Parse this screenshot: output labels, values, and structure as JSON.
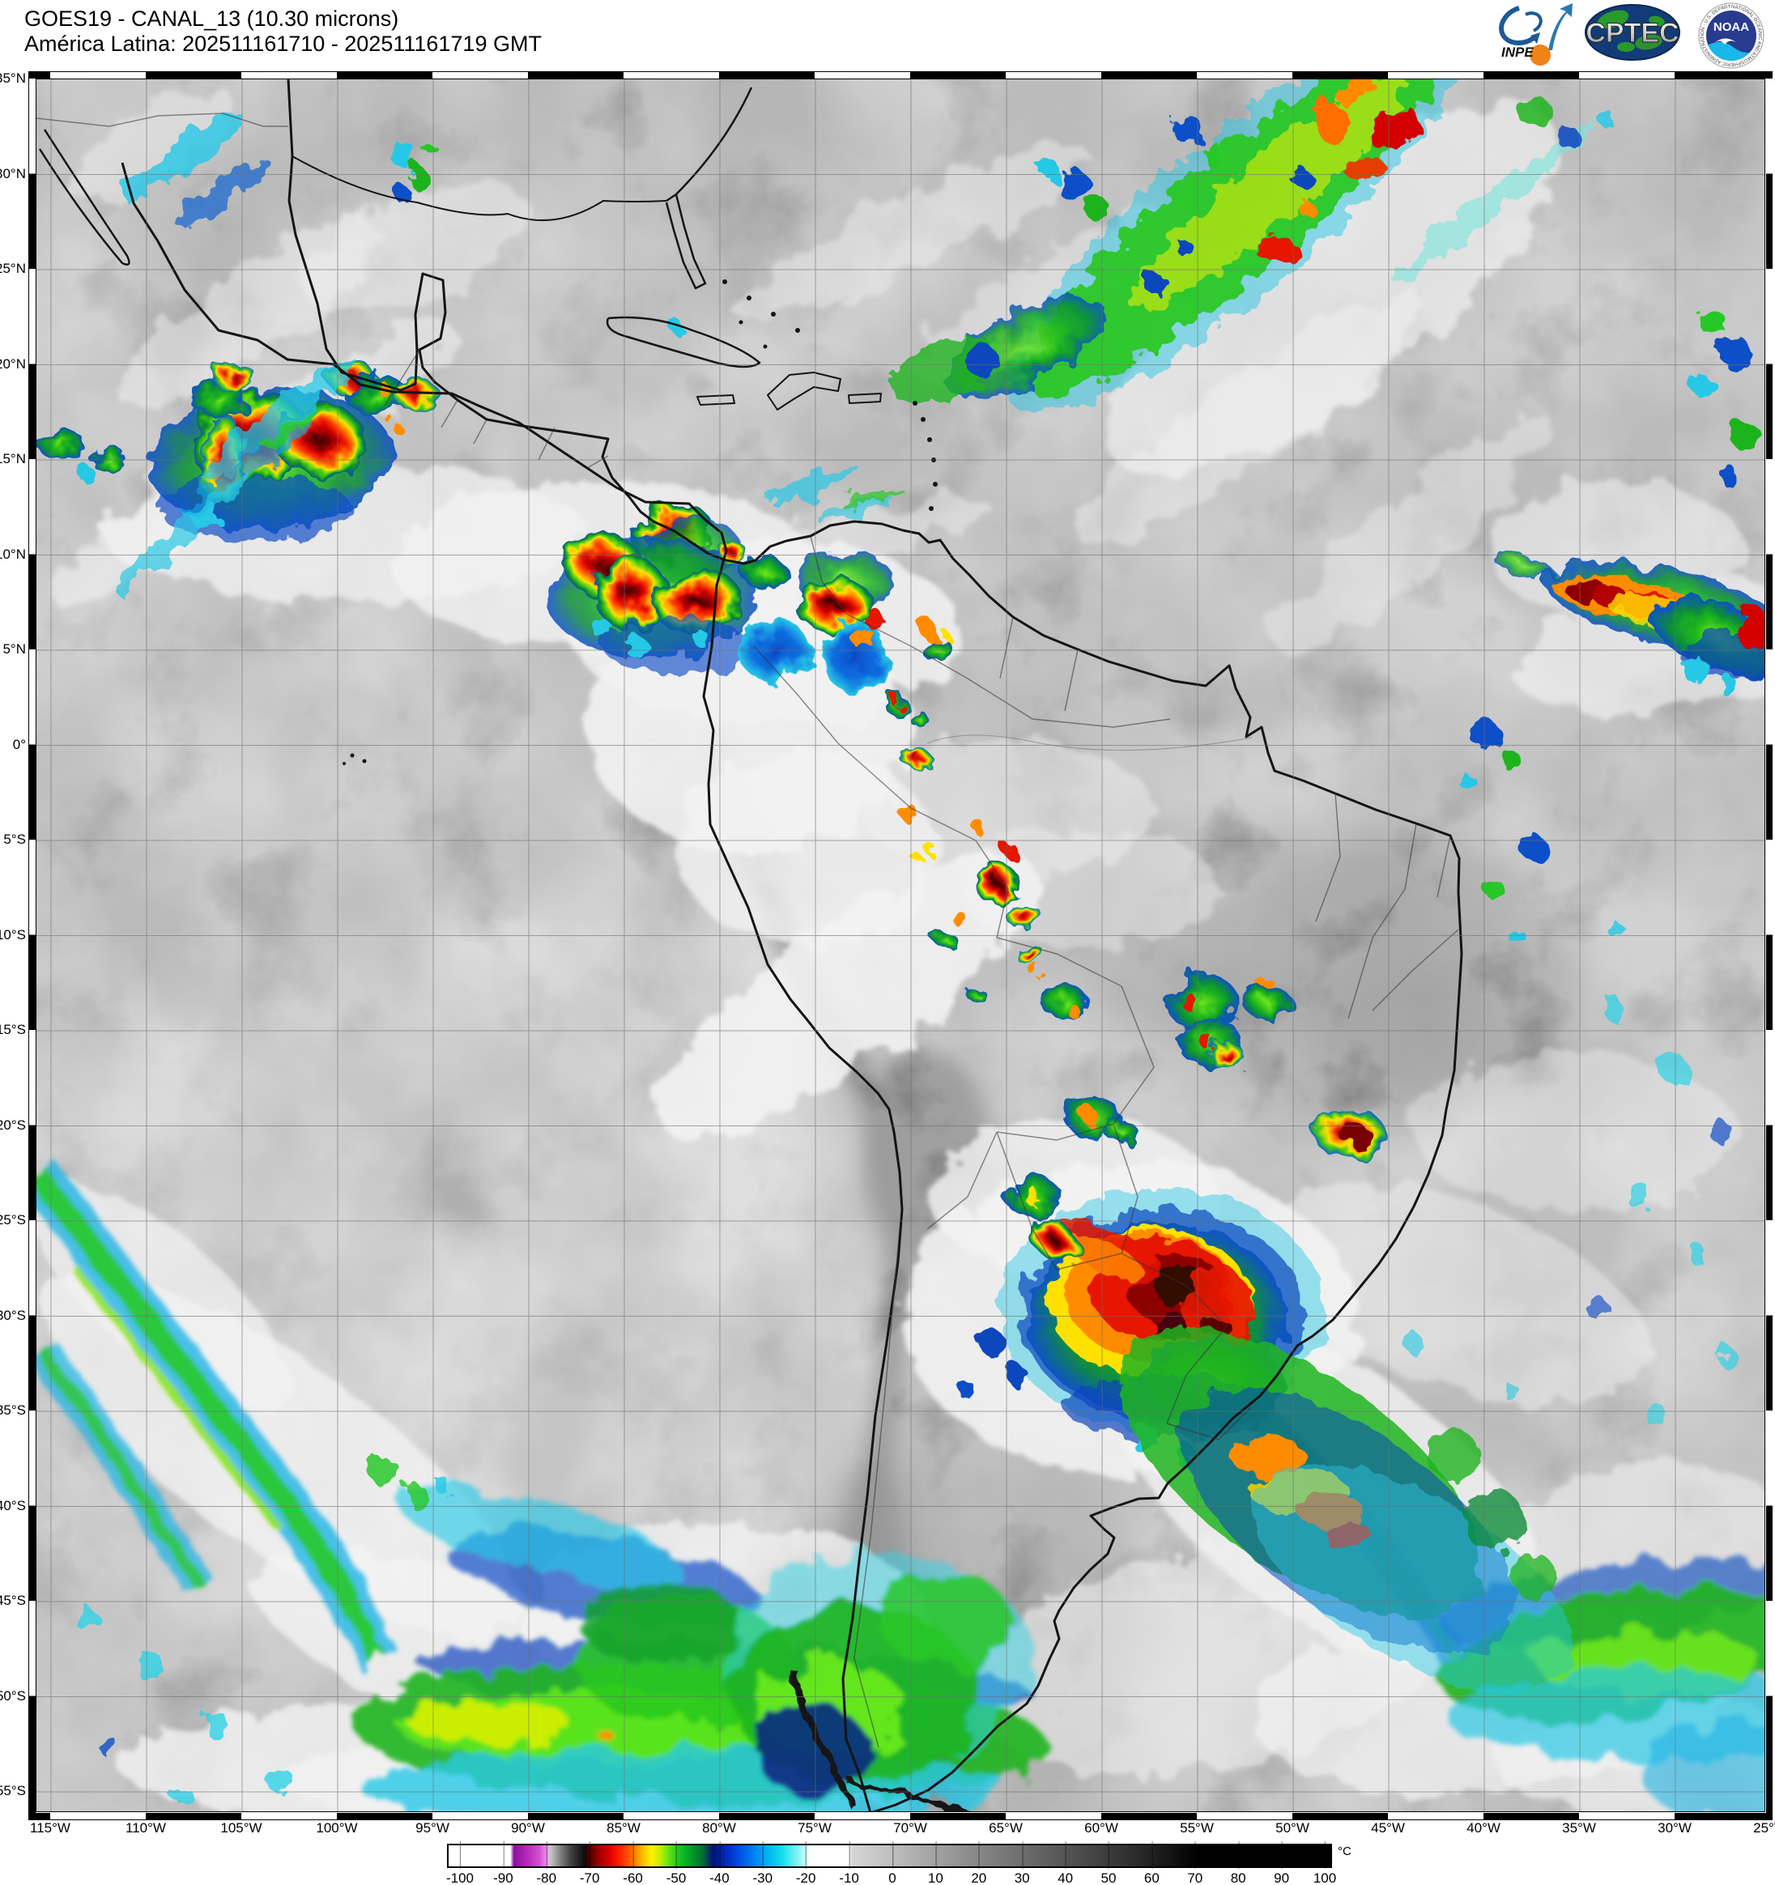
{
  "header": {
    "title_line1": "GOES19 - CANAL_13 (10.30 microns)",
    "title_line2": "América Latina: 202511161710 - 202511161719 GMT"
  },
  "logos": {
    "inpe_label": "INPE",
    "cptec_label": "CPTEC",
    "noaa_label": "NOAA",
    "noaa_ring_text": "NATIONAL OCEANIC AND ATMOSPHERIC ADMINISTRATION · U.S. DEPARTMENT OF COMMERCE"
  },
  "map": {
    "lat_labels": [
      "35°N",
      "30°N",
      "25°N",
      "20°N",
      "15°N",
      "10°N",
      "5°N",
      "0°",
      "5°S",
      "10°S",
      "15°S",
      "20°S",
      "25°S",
      "30°S",
      "35°S",
      "40°S",
      "45°S",
      "50°S",
      "55°S"
    ],
    "lon_labels": [
      "115°W",
      "110°W",
      "105°W",
      "100°W",
      "95°W",
      "90°W",
      "85°W",
      "80°W",
      "75°W",
      "70°W",
      "65°W",
      "60°W",
      "55°W",
      "50°W",
      "45°W",
      "40°W",
      "35°W",
      "30°W",
      "25°W"
    ]
  },
  "colorbar": {
    "unit_label": "°C",
    "tick_labels": [
      "-100",
      "-90",
      "-80",
      "-70",
      "-60",
      "-50",
      "-40",
      "-30",
      "-20",
      "-10",
      "0",
      "10",
      "20",
      "30",
      "40",
      "50",
      "60",
      "70",
      "80",
      "90",
      "100"
    ],
    "scale_colors": {
      "very_cold_magenta": "#c828c8",
      "cold_red": "#e00000",
      "cold_orange": "#ff7800",
      "cold_yellow": "#fff000",
      "cold_green": "#1ec81e",
      "cold_blue": "#0028b4",
      "cold_cyan": "#14dcec",
      "warm_gray_to_black": "#000000"
    }
  }
}
